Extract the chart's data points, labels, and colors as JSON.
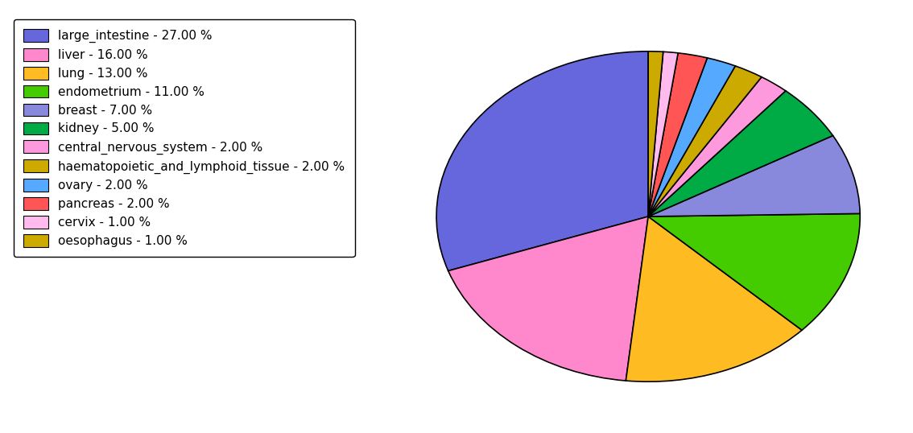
{
  "labels": [
    "large_intestine",
    "liver",
    "lung",
    "endometrium",
    "breast",
    "kidney",
    "central_nervous_system",
    "haematopoietic_and_lymphoid_tissue",
    "ovary",
    "pancreas",
    "cervix",
    "oesophagus"
  ],
  "values": [
    27,
    16,
    13,
    11,
    7,
    5,
    2,
    2,
    2,
    2,
    1,
    1
  ],
  "colors": [
    "#6666dd",
    "#ff88cc",
    "#ffbb22",
    "#44cc00",
    "#8888dd",
    "#00aa44",
    "#ff99dd",
    "#ccaa00",
    "#55aaff",
    "#ff5555",
    "#ffbbee",
    "#ccaa00"
  ],
  "legend_labels": [
    "large_intestine - 27.00 %",
    "liver - 16.00 %",
    "lung - 13.00 %",
    "endometrium - 11.00 %",
    "breast - 7.00 %",
    "kidney - 5.00 %",
    "central_nervous_system - 2.00 %",
    "haematopoietic_and_lymphoid_tissue - 2.00 %",
    "ovary - 2.00 %",
    "pancreas - 2.00 %",
    "cervix - 1.00 %",
    "oesophagus - 1.00 %"
  ],
  "startangle": 90,
  "counterclock": true,
  "figure_width": 11.34,
  "figure_height": 5.38,
  "aspect_ratio": 0.78
}
